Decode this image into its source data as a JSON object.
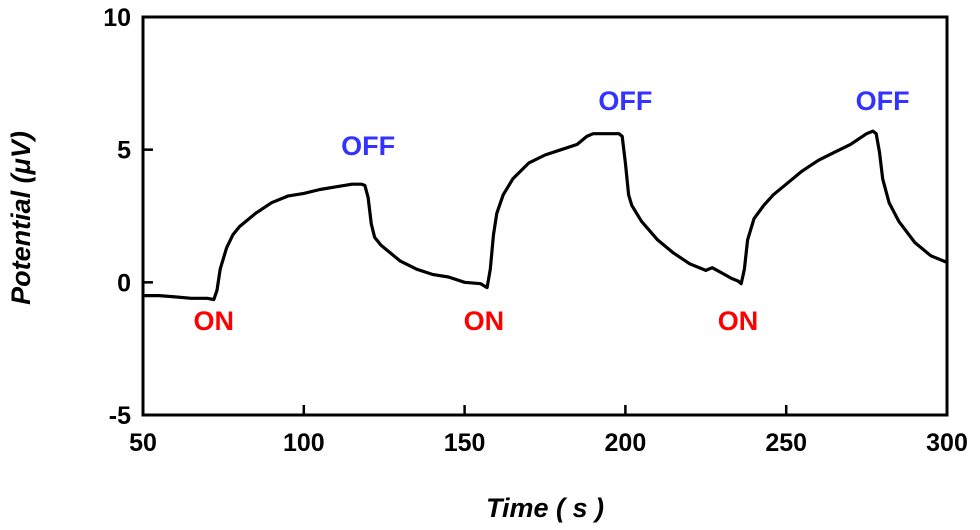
{
  "chart_data": {
    "type": "line",
    "title": "",
    "xlabel": "Time ( s )",
    "ylabel": "Potential (μV)",
    "xlim": [
      50,
      300
    ],
    "ylim": [
      -5,
      10
    ],
    "xticks": [
      50,
      100,
      150,
      200,
      250,
      300
    ],
    "yticks": [
      -5,
      0,
      5,
      10
    ],
    "xtick_labels": [
      "50",
      "100",
      "150",
      "200",
      "250",
      "300"
    ],
    "ytick_labels": [
      "-5",
      "0",
      "5",
      "10"
    ],
    "grid": false,
    "legend": "none",
    "line_color": "#000000",
    "series": [
      {
        "x": [
          50,
          55,
          60,
          65,
          70,
          72,
          73,
          74,
          76,
          78,
          80,
          85,
          90,
          95,
          100,
          105,
          110,
          115,
          118,
          119,
          120,
          121,
          122,
          124,
          126,
          130,
          135,
          140,
          145,
          150,
          155,
          157,
          158,
          159,
          160,
          162,
          165,
          170,
          175,
          180,
          185,
          188,
          190,
          195,
          198,
          199,
          200,
          201,
          202,
          205,
          210,
          215,
          220,
          225,
          227,
          230,
          233,
          235,
          236,
          237,
          238,
          240,
          243,
          246,
          250,
          255,
          260,
          265,
          270,
          275,
          277,
          278,
          279,
          280,
          282,
          285,
          290,
          295,
          300
        ],
        "y": [
          -0.5,
          -0.5,
          -0.55,
          -0.6,
          -0.6,
          -0.65,
          -0.3,
          0.5,
          1.3,
          1.8,
          2.1,
          2.6,
          3.0,
          3.25,
          3.35,
          3.5,
          3.6,
          3.7,
          3.7,
          3.65,
          3.2,
          2.2,
          1.7,
          1.4,
          1.2,
          0.8,
          0.5,
          0.3,
          0.2,
          0.0,
          -0.05,
          -0.2,
          0.5,
          1.8,
          2.6,
          3.3,
          3.9,
          4.5,
          4.8,
          5.0,
          5.2,
          5.5,
          5.6,
          5.6,
          5.6,
          5.5,
          4.5,
          3.3,
          2.9,
          2.3,
          1.6,
          1.1,
          0.7,
          0.45,
          0.55,
          0.35,
          0.15,
          0.05,
          -0.05,
          0.5,
          1.6,
          2.4,
          2.9,
          3.3,
          3.7,
          4.2,
          4.6,
          4.9,
          5.2,
          5.6,
          5.7,
          5.6,
          4.9,
          3.9,
          3.0,
          2.3,
          1.5,
          1.0,
          0.75
        ]
      }
    ],
    "annotations": [
      {
        "text": "ON",
        "x": 72,
        "y": -1.8,
        "color": "#ff0000"
      },
      {
        "text": "OFF",
        "x": 120,
        "y": 4.8,
        "color": "#3333ff"
      },
      {
        "text": "ON",
        "x": 156,
        "y": -1.8,
        "color": "#ff0000"
      },
      {
        "text": "OFF",
        "x": 200,
        "y": 6.5,
        "color": "#3333ff"
      },
      {
        "text": "ON",
        "x": 235,
        "y": -1.8,
        "color": "#ff0000"
      },
      {
        "text": "OFF",
        "x": 280,
        "y": 6.5,
        "color": "#3333ff"
      }
    ]
  }
}
